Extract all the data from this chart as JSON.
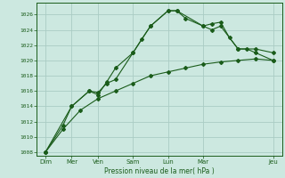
{
  "xlabel": "Pression niveau de la mer( hPa )",
  "ylim": [
    1007.5,
    1027.5
  ],
  "yticks": [
    1008,
    1010,
    1012,
    1014,
    1016,
    1018,
    1020,
    1022,
    1024,
    1026
  ],
  "xtick_labels": [
    "Dim",
    "Mer",
    "Ven",
    "Sam",
    "Lun",
    "Mar",
    "Jeu"
  ],
  "xtick_positions": [
    0,
    3,
    6,
    10,
    14,
    18,
    26
  ],
  "xlim": [
    -1,
    27
  ],
  "background_color": "#cce8e0",
  "grid_color": "#aaccc4",
  "line_color": "#1a5c1a",
  "line1_x": [
    0,
    2,
    3,
    5,
    6,
    7,
    8,
    10,
    11,
    12,
    14,
    15,
    16,
    18,
    19,
    20,
    21,
    22,
    23,
    24,
    26
  ],
  "line1_y": [
    1008,
    1011.5,
    1014,
    1016,
    1015.8,
    1017,
    1017.5,
    1021,
    1022.8,
    1024.5,
    1026.5,
    1026.5,
    1025.5,
    1024.5,
    1024.8,
    1025,
    1023,
    1021.5,
    1021.5,
    1021,
    1020
  ],
  "line2_x": [
    0,
    3,
    5,
    6,
    7,
    8,
    10,
    12,
    14,
    15,
    18,
    19,
    20,
    22,
    24,
    26
  ],
  "line2_y": [
    1008,
    1014,
    1016,
    1015.5,
    1017.2,
    1019,
    1021,
    1024.5,
    1026.5,
    1026.5,
    1024.5,
    1024,
    1024.5,
    1021.5,
    1021.5,
    1021
  ],
  "line3_x": [
    0,
    2,
    4,
    6,
    8,
    10,
    12,
    14,
    16,
    18,
    20,
    22,
    24,
    26
  ],
  "line3_y": [
    1008,
    1011,
    1013.5,
    1015,
    1016,
    1017,
    1018,
    1018.5,
    1019,
    1019.5,
    1019.8,
    1020,
    1020.2,
    1020
  ]
}
